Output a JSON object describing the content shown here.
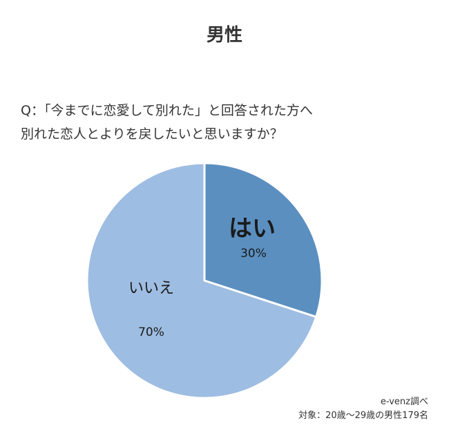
{
  "title": "男性",
  "question": {
    "line1": "Q：「今までに恋愛して別れた」と回答された方へ",
    "line2": "別れた恋人とよりを戻したいと思いますか？"
  },
  "chart_data": {
    "type": "pie",
    "title": "男性",
    "slices": [
      {
        "label": "はい",
        "value": 30,
        "display": "30%",
        "color": "#5b8fc0"
      },
      {
        "label": "いいえ",
        "value": 70,
        "display": "70%",
        "color": "#9ebde2"
      }
    ]
  },
  "source": {
    "line1": "e-venz調べ",
    "line2": "対象：20歳〜29歳の男性179名"
  }
}
